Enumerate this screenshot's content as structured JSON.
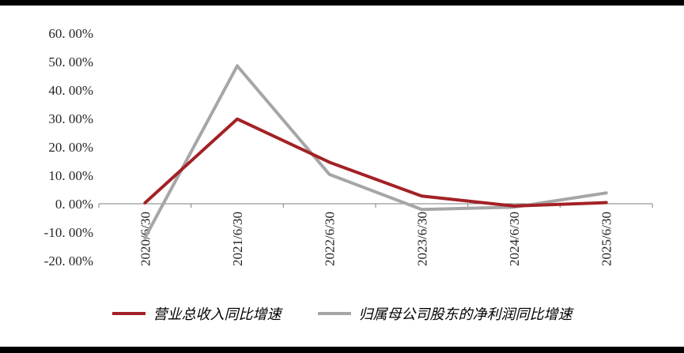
{
  "chart_data": {
    "type": "line",
    "title": "",
    "xlabel": "",
    "ylabel": "",
    "categories": [
      "2020/6/30",
      "2021/6/30",
      "2022/6/30",
      "2023/6/30",
      "2024/6/30",
      "2025/6/30"
    ],
    "series": [
      {
        "name": "营业总收入同比增速",
        "color": "#A32126",
        "values": [
          0.3,
          29.8,
          14.6,
          2.7,
          -0.8,
          0.4
        ]
      },
      {
        "name": "归属母公司股东的净利润同比增速",
        "color": "#A6A6A6",
        "values": [
          -12.0,
          48.5,
          10.3,
          -2.0,
          -1.2,
          3.8
        ]
      }
    ],
    "ylim": [
      -20,
      60
    ],
    "ytick_step": 10,
    "ytick_labels": [
      "60. 00%",
      "50. 00%",
      "40. 00%",
      "30. 00%",
      "20. 00%",
      "10. 00%",
      "0. 00%",
      "-10. 00%",
      "-20. 00%"
    ],
    "grid": false,
    "legend_position": "bottom",
    "axis_color": "#7F7F7F",
    "label_color": "#262626"
  }
}
